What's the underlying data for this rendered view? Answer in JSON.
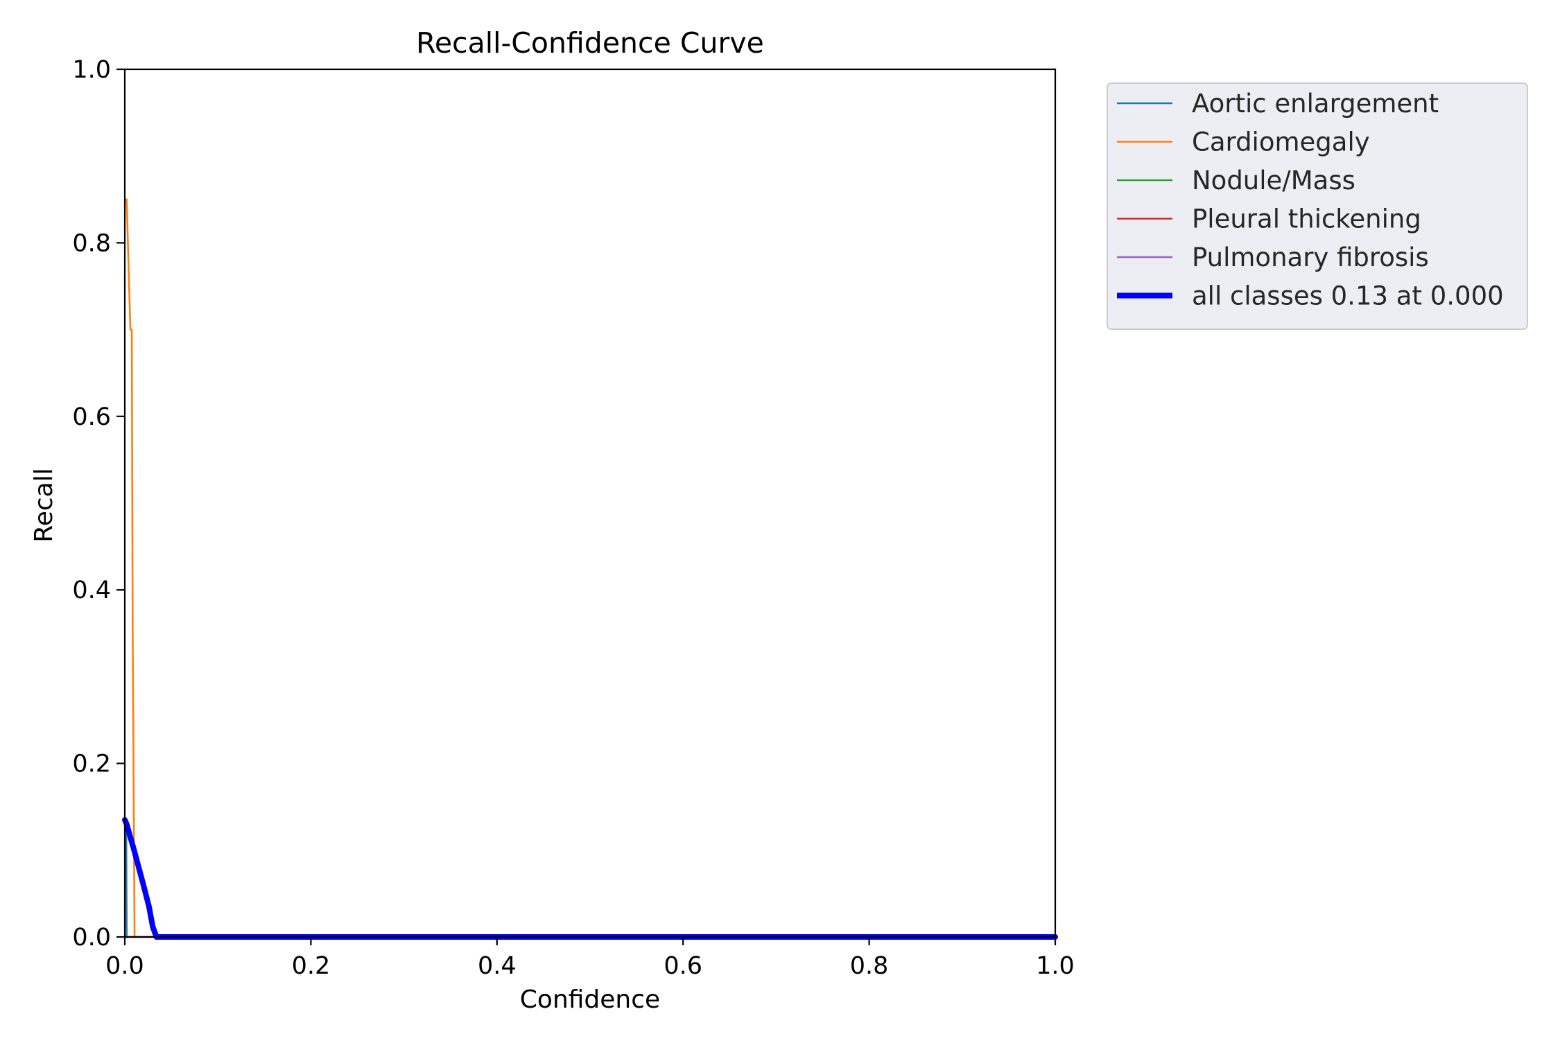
{
  "chart_data": {
    "type": "line",
    "title": "Recall-Confidence Curve",
    "xlabel": "Confidence",
    "ylabel": "Recall",
    "xlim": [
      0,
      1
    ],
    "ylim": [
      0,
      1
    ],
    "xticks": [
      "0.0",
      "0.2",
      "0.4",
      "0.6",
      "0.8",
      "1.0"
    ],
    "yticks": [
      "0.0",
      "0.2",
      "0.4",
      "0.6",
      "0.8",
      "1.0"
    ],
    "grid": false,
    "legend_position": "outside upper right",
    "series": [
      {
        "name": "Aortic enlargement",
        "color": "#1f77b4",
        "width": "thin",
        "points": [
          [
            0.0,
            0.13
          ],
          [
            0.0015,
            0.13
          ],
          [
            0.002,
            0.0
          ],
          [
            1.0,
            0.0
          ]
        ]
      },
      {
        "name": "Cardiomegaly",
        "color": "#ff7f0e",
        "width": "thin",
        "points": [
          [
            0.0,
            0.85
          ],
          [
            0.002,
            0.85
          ],
          [
            0.006,
            0.7
          ],
          [
            0.0075,
            0.7
          ],
          [
            0.0085,
            0.35
          ],
          [
            0.0105,
            0.0
          ],
          [
            1.0,
            0.0
          ]
        ]
      },
      {
        "name": "Nodule/Mass",
        "color": "#2ca02c",
        "width": "thin",
        "points": [
          [
            0.0,
            0.0
          ],
          [
            1.0,
            0.0
          ]
        ]
      },
      {
        "name": "Pleural thickening",
        "color": "#d62728",
        "width": "thin",
        "points": [
          [
            0.0,
            0.0
          ],
          [
            1.0,
            0.0
          ]
        ]
      },
      {
        "name": "Pulmonary fibrosis",
        "color": "#9467bd",
        "width": "thin",
        "points": [
          [
            0.0,
            0.0
          ],
          [
            1.0,
            0.0
          ]
        ]
      },
      {
        "name": "all classes 0.13 at 0.000",
        "color": "#0000ff",
        "width": "thick",
        "points": [
          [
            0.0,
            0.135
          ],
          [
            0.002,
            0.13
          ],
          [
            0.01,
            0.1
          ],
          [
            0.02,
            0.06
          ],
          [
            0.026,
            0.035
          ],
          [
            0.03,
            0.012
          ],
          [
            0.034,
            0.0
          ],
          [
            1.0,
            0.0
          ]
        ]
      }
    ]
  }
}
